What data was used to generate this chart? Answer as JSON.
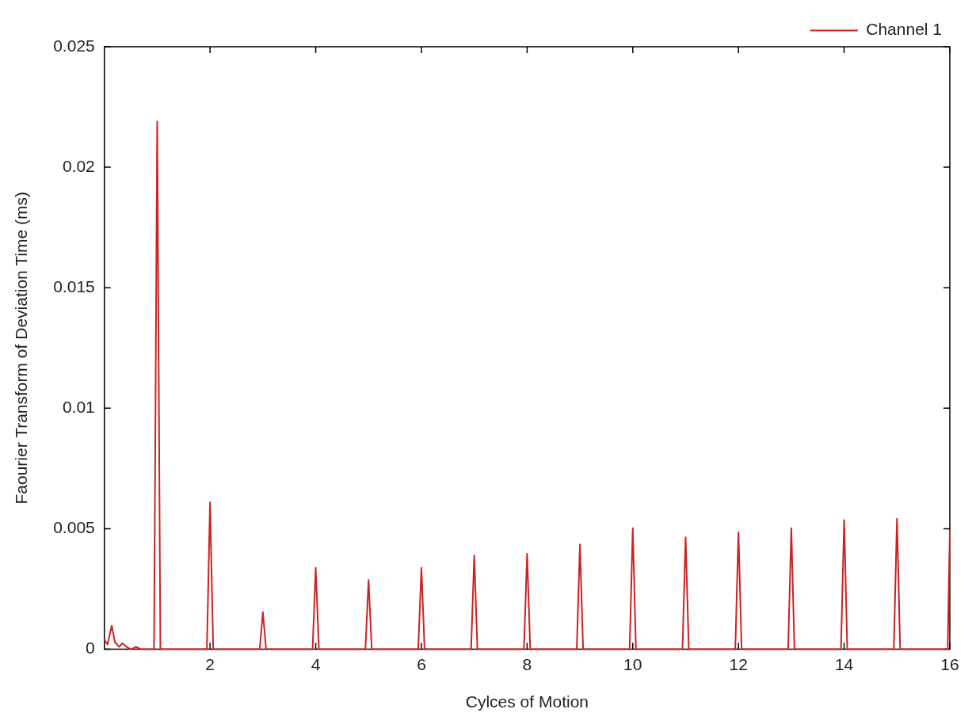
{
  "chart_data": {
    "type": "line",
    "xlabel": "Cylces of Motion",
    "ylabel": "Faourier Transform of Deviation Time (ms)",
    "x": [
      0,
      0.06,
      0.14,
      0.2,
      0.28,
      0.34,
      0.42,
      0.5,
      0.6,
      0.7,
      0.94,
      1,
      1.06,
      1.94,
      2,
      2.06,
      2.94,
      3,
      3.06,
      3.94,
      4,
      4.06,
      4.94,
      5,
      5.06,
      5.94,
      6,
      6.06,
      6.94,
      7,
      7.06,
      7.94,
      8,
      8.06,
      8.94,
      9,
      9.06,
      9.94,
      10,
      10.06,
      10.94,
      11,
      11.06,
      11.94,
      12,
      12.06,
      12.94,
      13,
      13.06,
      13.94,
      14,
      14.06,
      14.94,
      15,
      15.06,
      15.96,
      16
    ],
    "series": [
      {
        "name": "Channel 1",
        "color": "#cc2222",
        "values": [
          0.0004,
          0.0002,
          0.00098,
          0.0003,
          0.0001,
          0.00025,
          0.0001,
          0,
          0.0001,
          0,
          0,
          0.0219,
          0,
          0,
          0.0061,
          0,
          0,
          0.00154,
          0,
          0,
          0.00338,
          0,
          0,
          0.00287,
          0,
          0,
          0.00338,
          0,
          0,
          0.00389,
          0,
          0,
          0.00396,
          0,
          0,
          0.00435,
          0,
          0,
          0.00502,
          0,
          0,
          0.00465,
          0,
          0,
          0.00485,
          0,
          0,
          0.00502,
          0,
          0,
          0.00536,
          0,
          0,
          0.00542,
          0,
          0,
          0.0049
        ]
      }
    ],
    "xlim": [
      0,
      16
    ],
    "xticks": [
      2,
      4,
      6,
      8,
      10,
      12,
      14,
      16
    ],
    "ylim": [
      0,
      0.025
    ],
    "yticks": [
      0,
      0.005,
      0.01,
      0.015,
      0.02,
      0.025
    ],
    "grid": false,
    "legend": "top right",
    "marker": "none",
    "line_style": "solid"
  }
}
